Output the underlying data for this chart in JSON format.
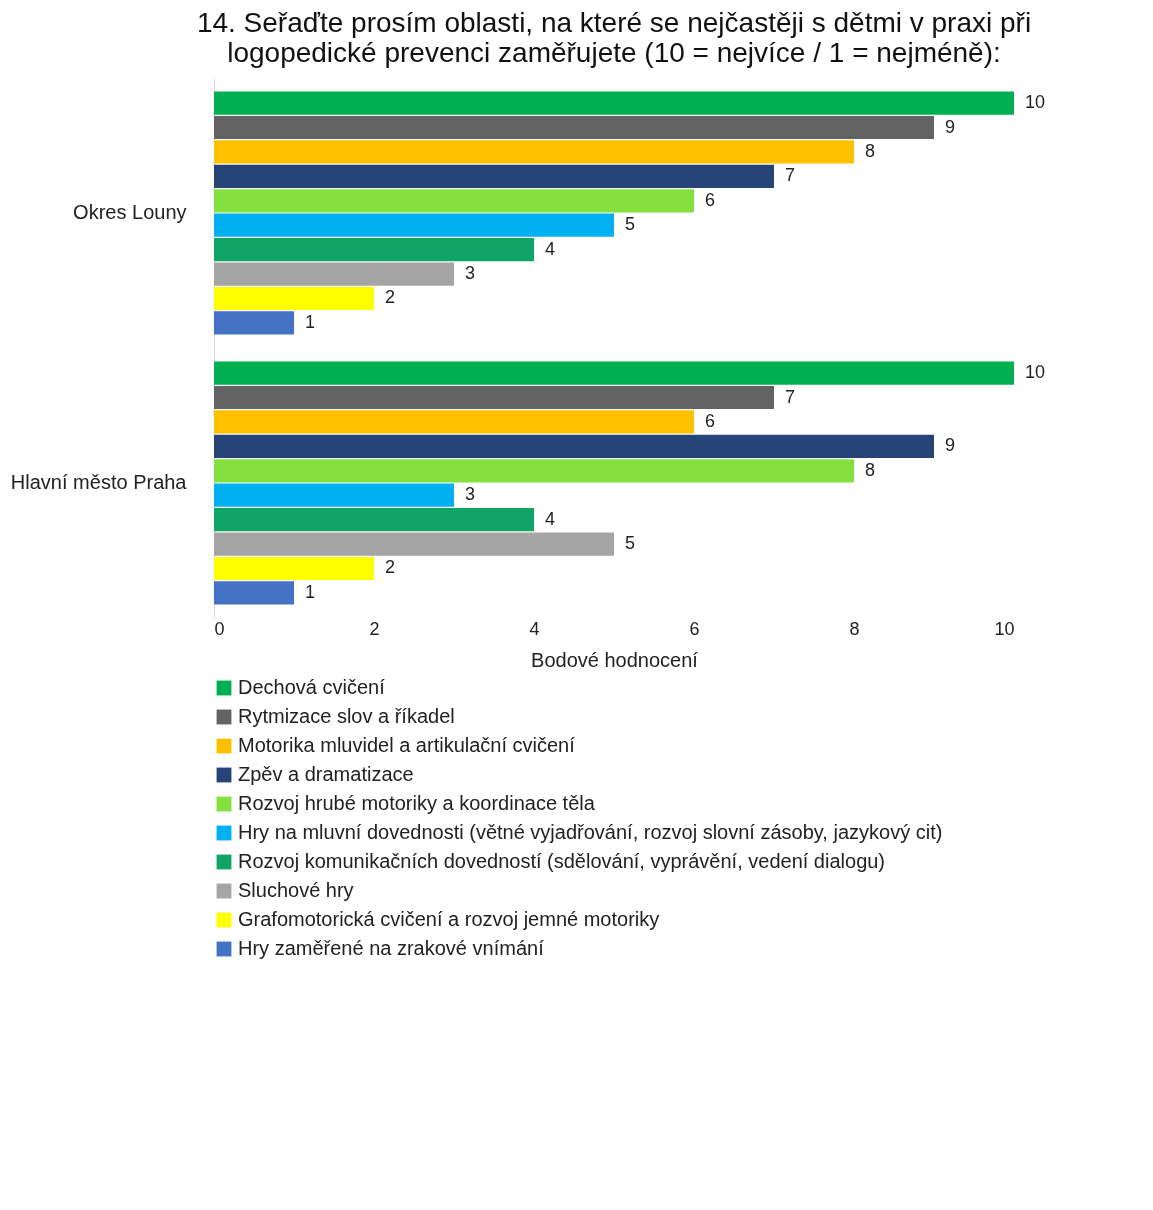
{
  "chart_data": {
    "type": "bar",
    "orientation": "horizontal",
    "title": "14. Seřaďte prosím oblasti, na které se nejčastěji s dětmi v praxi při logopedické prevenci zaměřujete (10 = nejvíce / 1 = nejméně):",
    "xlabel": "Bodové hodnocení",
    "categories": [
      "Okres Louny",
      "Hlavní město Praha"
    ],
    "series": [
      {
        "name": "Dechová cvičení",
        "color": "#00b050",
        "values": [
          10,
          10
        ]
      },
      {
        "name": "Rytmizace slov a říkadel",
        "color": "#636363",
        "values": [
          9,
          7
        ]
      },
      {
        "name": "Motorika mluvidel a artikulační cvičení",
        "color": "#ffc000",
        "values": [
          8,
          6
        ]
      },
      {
        "name": "Zpěv a dramatizace",
        "color": "#264478",
        "values": [
          7,
          9
        ]
      },
      {
        "name": "Rozvoj hrubé motoriky a koordinace těla",
        "color": "#84e03e",
        "values": [
          6,
          8
        ]
      },
      {
        "name": "Hry na mluvní dovednosti (větné vyjadřování, rozvoj slovní zásoby, jazykový cit)",
        "color": "#00b0f0",
        "values": [
          5,
          3
        ]
      },
      {
        "name": "Rozvoj komunikačních dovedností (sdělování, vyprávění, vedení dialogu)",
        "color": "#10a466",
        "values": [
          4,
          4
        ]
      },
      {
        "name": "Sluchové hry",
        "color": "#a5a5a5",
        "values": [
          3,
          5
        ]
      },
      {
        "name": "Grafomotorická cvičení a rozvoj jemné motoriky",
        "color": "#ffff00",
        "values": [
          2,
          2
        ]
      },
      {
        "name": "Hry zaměřené na zrakové vnímání",
        "color": "#4472c4",
        "values": [
          1,
          1
        ]
      }
    ],
    "xlim": [
      0,
      10
    ],
    "xticks": [
      0,
      2,
      4,
      6,
      8,
      10
    ],
    "data_labels": true,
    "legend": "bottom",
    "grid": false
  }
}
